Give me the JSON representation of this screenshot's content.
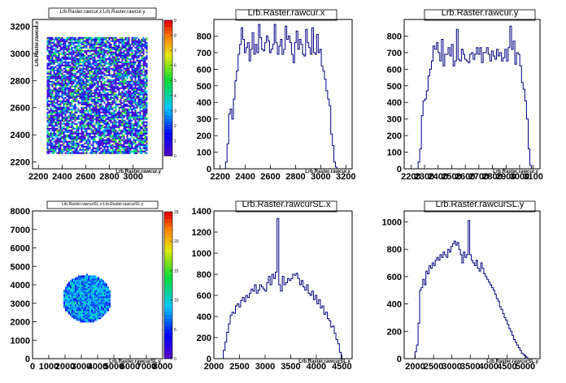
{
  "chart_data": [
    {
      "type": "heatmap",
      "title": "Lrb.Raster.rawcur.x:Lrb.Raster.rawcur.y",
      "xlabel": "Lrb.Raster.rawcur.y",
      "ylabel": "Lrb.Raster.rawcur.x",
      "xlim": [
        2150,
        3250
      ],
      "ylim": [
        2150,
        3250
      ],
      "xticks": [
        2200,
        2400,
        2600,
        2800,
        3000
      ],
      "yticks": [
        2200,
        2400,
        2600,
        2800,
        3000,
        3200
      ],
      "ytick_labels": [
        "2200",
        "2400",
        "2600",
        "2800",
        "3000",
        "3200"
      ],
      "region": {
        "shape": "rect",
        "x": [
          2270,
          3110
        ],
        "y": [
          2260,
          3120
        ]
      },
      "colorbar": {
        "min": 0,
        "max": 9,
        "ticks": [
          0,
          1,
          2,
          3,
          4,
          5,
          6,
          7,
          8,
          9
        ]
      },
      "grid": false
    },
    {
      "type": "line",
      "subtype": "histogram",
      "title": "Lrb.Raster.rawcur.x",
      "xlabel": "Lrb.Raster.rawcur.x",
      "xlim": [
        2150,
        3250
      ],
      "ylim": [
        0,
        900
      ],
      "xticks": [
        2200,
        2400,
        2600,
        2800,
        3000,
        3200
      ],
      "yticks": [
        0,
        100,
        200,
        300,
        400,
        500,
        600,
        700,
        800
      ],
      "bin_edges": [
        2230,
        3130
      ],
      "bin_count": 72,
      "values": [
        0,
        40,
        150,
        330,
        360,
        300,
        420,
        530,
        590,
        690,
        750,
        850,
        780,
        700,
        730,
        760,
        650,
        720,
        820,
        690,
        750,
        700,
        870,
        790,
        720,
        710,
        760,
        800,
        770,
        700,
        720,
        750,
        870,
        760,
        690,
        740,
        780,
        690,
        720,
        860,
        780,
        800,
        760,
        690,
        640,
        760,
        830,
        720,
        780,
        750,
        690,
        680,
        840,
        760,
        730,
        690,
        850,
        700,
        690,
        810,
        700,
        720,
        620,
        590,
        540,
        470,
        420,
        380,
        210,
        140,
        40,
        10
      ],
      "grid": false
    },
    {
      "type": "line",
      "subtype": "histogram",
      "title": "Lrb.Raster.rawcur.y",
      "xlabel": "Lrb.Raster.rawcur.y",
      "xlim": [
        2150,
        3150
      ],
      "ylim": [
        0,
        900
      ],
      "xticks": [
        2200,
        2300,
        2400,
        2500,
        2600,
        2700,
        2800,
        2900,
        3000,
        3100
      ],
      "yticks": [
        0,
        100,
        200,
        300,
        400,
        500,
        600,
        700,
        800
      ],
      "bin_edges": [
        2240,
        3100
      ],
      "bin_count": 70,
      "values": [
        0,
        40,
        120,
        320,
        410,
        420,
        470,
        560,
        600,
        650,
        740,
        720,
        760,
        700,
        650,
        780,
        620,
        690,
        690,
        730,
        680,
        750,
        620,
        650,
        840,
        660,
        650,
        720,
        690,
        660,
        650,
        640,
        690,
        700,
        660,
        690,
        730,
        690,
        730,
        640,
        700,
        700,
        730,
        690,
        650,
        710,
        680,
        660,
        720,
        680,
        700,
        650,
        670,
        720,
        650,
        730,
        860,
        720,
        770,
        630,
        700,
        690,
        620,
        520,
        480,
        410,
        300,
        120,
        20,
        0
      ],
      "grid": false
    },
    {
      "type": "heatmap",
      "title": "Lrb.Raster.rawcurSL.x:Lrb.Raster.rawcurSL.y",
      "xlabel": "Lrb.Raster.rawcurSL.y",
      "ylabel": "",
      "xlim": [
        0,
        8000
      ],
      "ylim": [
        0,
        8000
      ],
      "xticks": [
        0,
        1000,
        2000,
        3000,
        4000,
        5000,
        6000,
        7000,
        8000
      ],
      "yticks": [
        0,
        1000,
        2000,
        3000,
        4000,
        5000,
        6000,
        7000,
        8000
      ],
      "region": {
        "shape": "ellipse",
        "cx": 3300,
        "cy": 3300,
        "rx": 1500,
        "ry": 1300
      },
      "colorbar": {
        "min": 0,
        "max": 25,
        "ticks": [
          0,
          5,
          10,
          15,
          20,
          25
        ]
      },
      "grid": false
    },
    {
      "type": "line",
      "subtype": "histogram",
      "title": "Lrb.Raster.rawcurSL.x",
      "xlabel": "Lrb.Raster.rawcurSL.x",
      "xlim": [
        2000,
        4700
      ],
      "ylim": [
        0,
        1400
      ],
      "xticks": [
        2000,
        2500,
        3000,
        3500,
        4000,
        4500
      ],
      "yticks": [
        0,
        200,
        400,
        600,
        800,
        1000,
        1200,
        1400
      ],
      "bin_edges": [
        2150,
        4520
      ],
      "bin_count": 70,
      "values": [
        0,
        80,
        160,
        250,
        330,
        410,
        440,
        430,
        500,
        520,
        490,
        550,
        580,
        540,
        600,
        580,
        620,
        660,
        640,
        700,
        620,
        650,
        700,
        680,
        660,
        640,
        720,
        780,
        700,
        800,
        760,
        820,
        1330,
        700,
        640,
        780,
        700,
        720,
        760,
        740,
        760,
        800,
        790,
        810,
        760,
        700,
        740,
        680,
        650,
        700,
        620,
        600,
        640,
        560,
        600,
        520,
        560,
        480,
        500,
        420,
        440,
        380,
        360,
        300,
        310,
        240,
        180,
        140,
        60,
        0
      ],
      "grid": false
    },
    {
      "type": "line",
      "subtype": "histogram",
      "title": "Lrb.Raster.rawcurSL.y",
      "xlabel": "Lrb.Raster.rawcurSL.y",
      "xlim": [
        1700,
        5400
      ],
      "ylim": [
        0,
        1080
      ],
      "xticks": [
        2000,
        2500,
        3000,
        3500,
        4000,
        4500,
        5000
      ],
      "yticks": [
        0,
        200,
        400,
        600,
        800,
        1000
      ],
      "bin_edges": [
        1950,
        5150
      ],
      "bin_count": 75,
      "values": [
        0,
        50,
        100,
        260,
        500,
        520,
        580,
        540,
        640,
        620,
        680,
        660,
        700,
        680,
        720,
        740,
        720,
        760,
        740,
        780,
        760,
        740,
        800,
        780,
        820,
        840,
        860,
        830,
        850,
        800,
        760,
        700,
        780,
        740,
        760,
        1010,
        760,
        720,
        700,
        680,
        720,
        660,
        640,
        700,
        660,
        620,
        600,
        580,
        560,
        540,
        520,
        500,
        470,
        440,
        420,
        380,
        360,
        330,
        300,
        280,
        250,
        220,
        200,
        170,
        140,
        120,
        100,
        80,
        60,
        40,
        30,
        20,
        10,
        0,
        0
      ],
      "grid": false
    }
  ]
}
